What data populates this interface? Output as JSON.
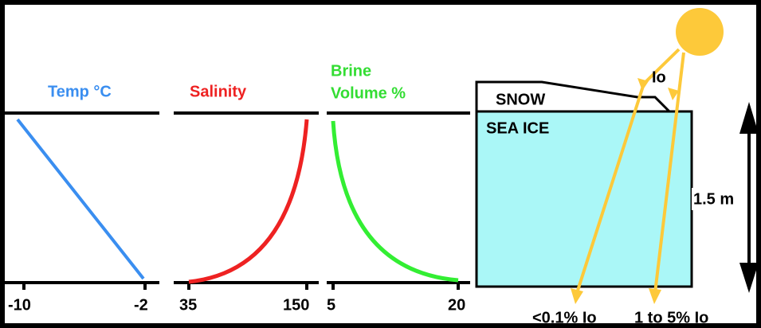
{
  "panels": [
    {
      "title": "Temp °C",
      "ticks": [
        "-10",
        "-2"
      ]
    },
    {
      "title": "Salinity",
      "ticks": [
        "35",
        "150"
      ]
    },
    {
      "title_lines": [
        "Brine",
        "Volume %"
      ],
      "ticks": [
        "5",
        "20"
      ]
    }
  ],
  "ice": {
    "snow_label": "SNOW",
    "ice_label": "SEA ICE",
    "thickness": "1.5 m",
    "incident": "Io",
    "transmitted": [
      "<0.1% Io",
      "1 to 5% Io"
    ]
  }
}
